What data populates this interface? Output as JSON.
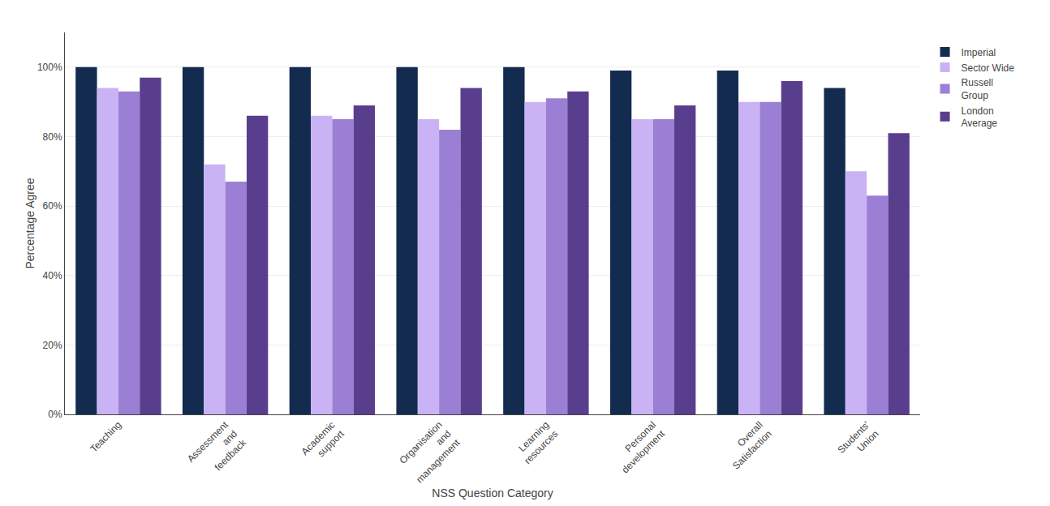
{
  "chart_data": {
    "type": "bar",
    "categories": [
      "Teaching",
      "Assessment\nand\nfeedback",
      "Academic\nsupport",
      "Organisation\nand\nmanagement",
      "Learning\nresources",
      "Personal\ndevelopment",
      "Overall\nSatisfaction",
      "Students'\nUnion"
    ],
    "series": [
      {
        "name": "Imperial",
        "color": "#122b4f",
        "values": [
          100,
          100,
          100,
          100,
          100,
          99,
          99,
          94
        ]
      },
      {
        "name": "Sector Wide",
        "color": "#c9b3f5",
        "values": [
          94,
          72,
          86,
          85,
          90,
          85,
          90,
          70
        ]
      },
      {
        "name": "Russell\nGroup",
        "color": "#9b7fd4",
        "values": [
          93,
          67,
          85,
          82,
          91,
          85,
          90,
          63
        ]
      },
      {
        "name": "London\nAverage",
        "color": "#5a3e8e",
        "values": [
          97,
          86,
          89,
          94,
          93,
          89,
          96,
          81
        ]
      }
    ],
    "xlabel": "NSS Question Category",
    "ylabel": "Percentage Agree",
    "ylim": [
      0,
      110
    ],
    "yticks": [
      {
        "value": 0,
        "label": "0%"
      },
      {
        "value": 20,
        "label": "20%"
      },
      {
        "value": 40,
        "label": "40%"
      },
      {
        "value": 60,
        "label": "60%"
      },
      {
        "value": 80,
        "label": "80%"
      },
      {
        "value": 100,
        "label": "100%"
      }
    ],
    "grid": true,
    "legend": "upper right"
  }
}
